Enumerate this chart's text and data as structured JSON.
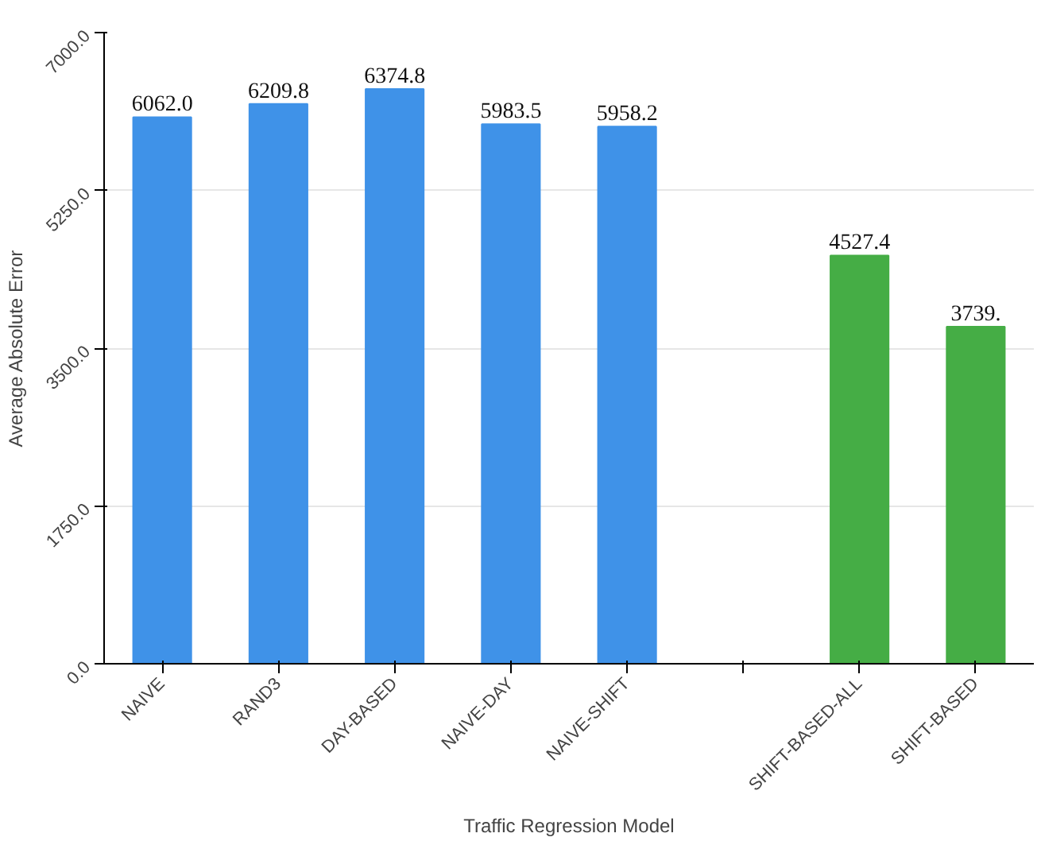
{
  "chart_data": {
    "type": "bar",
    "categories": [
      "NAIVE",
      "RAND3",
      "DAY-BASED",
      "NAIVE-DAY",
      "NAIVE-SHIFT",
      null,
      "SHIFT-BASED-ALL",
      "SHIFT-BASED"
    ],
    "values": [
      6062.0,
      6209.8,
      6374.8,
      5983.5,
      5958.2,
      null,
      4527.4,
      3739
    ],
    "colors": [
      "#3f92e8",
      "#3f92e8",
      "#3f92e8",
      "#3f92e8",
      "#3f92e8",
      "#3f92e8",
      "#45ad45",
      "#45ad45"
    ],
    "value_labels": [
      "6062.0",
      "6209.8",
      "6374.8",
      "5983.5",
      "5958.2",
      null,
      "4527.4",
      "3739."
    ],
    "xlabel": "Traffic Regression Model",
    "ylabel": "Average Absolute Error",
    "ylim": [
      0,
      7000
    ],
    "yticks": [
      {
        "value": 0,
        "label": "0.0"
      },
      {
        "value": 1750,
        "label": "1750.0"
      },
      {
        "value": 3500,
        "label": "3500.0"
      },
      {
        "value": 5250,
        "label": "5250.0"
      },
      {
        "value": 7000,
        "label": "7000.0"
      }
    ],
    "grid": "y"
  }
}
